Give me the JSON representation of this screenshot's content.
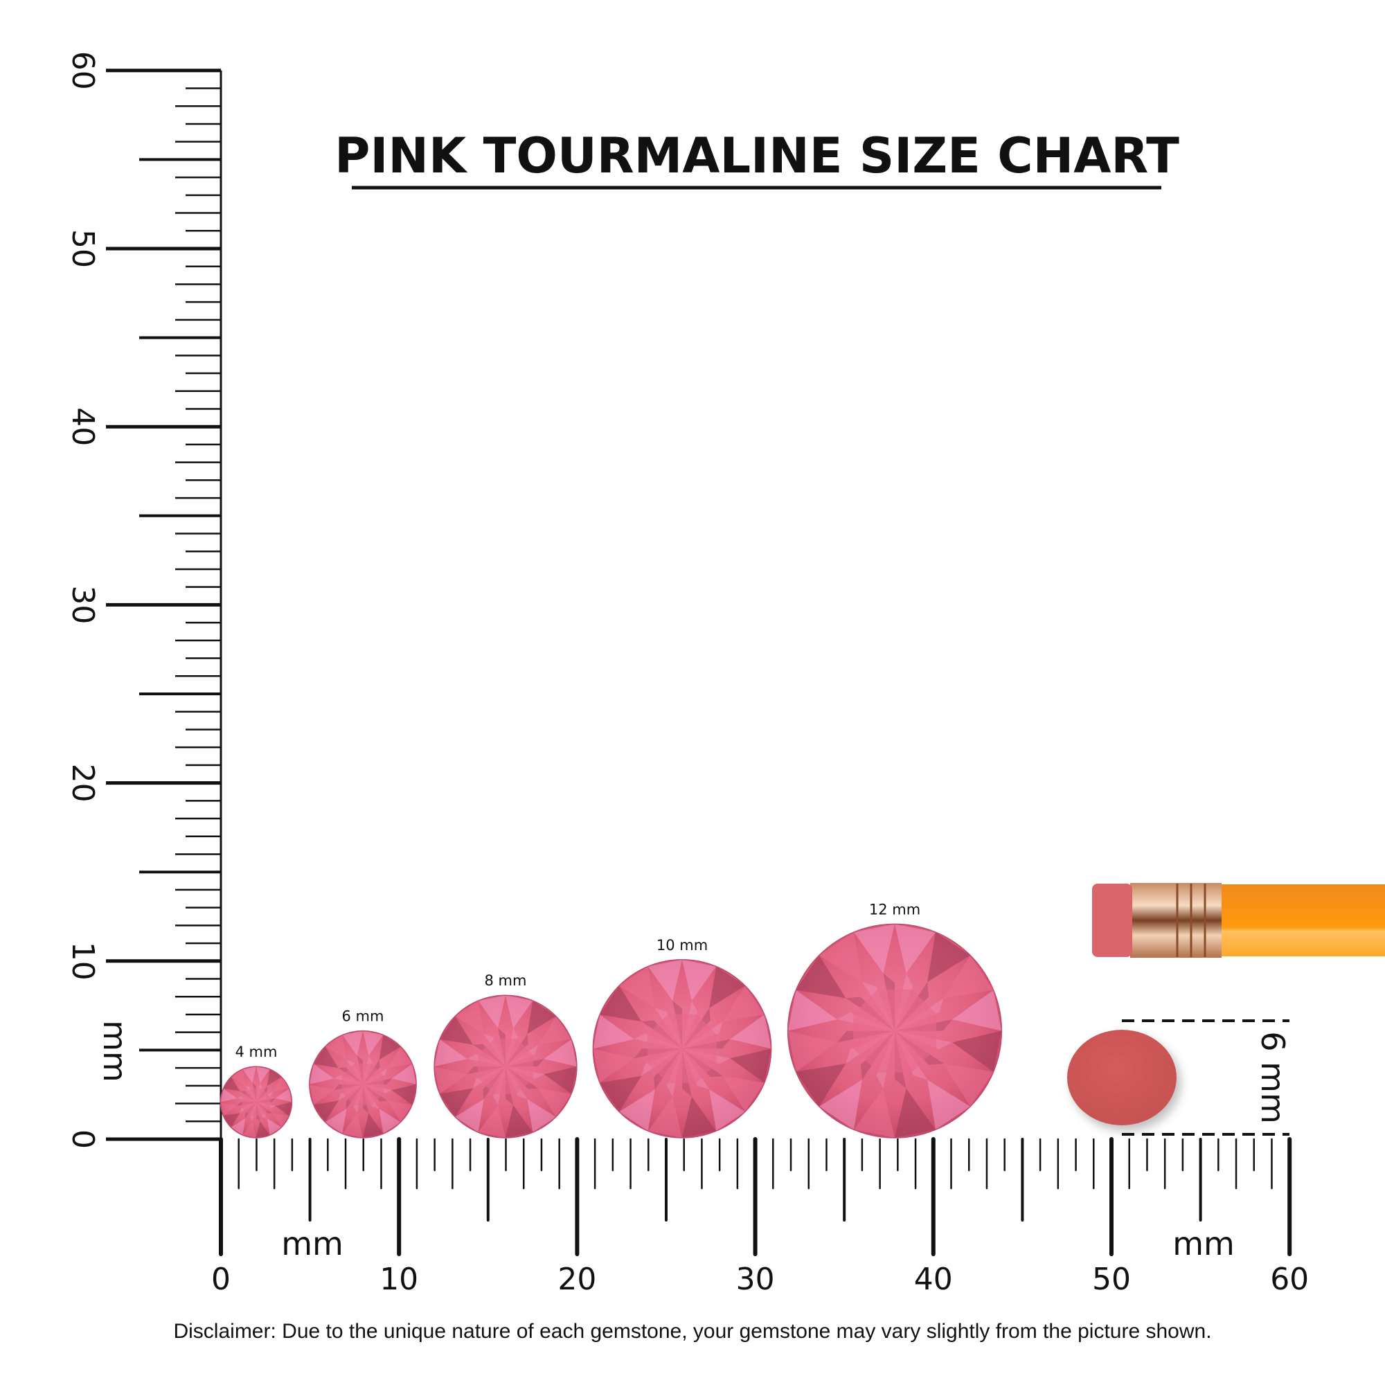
{
  "title": "PINK TOURMALINE SIZE CHART",
  "ruler": {
    "unit_label": "mm",
    "min": 0,
    "max": 60,
    "major_step": 10,
    "tick_labels": [
      "0",
      "10",
      "20",
      "30",
      "40",
      "50",
      "60"
    ]
  },
  "gems": [
    {
      "label": "4 mm",
      "size_mm": 4
    },
    {
      "label": "6 mm",
      "size_mm": 6
    },
    {
      "label": "8 mm",
      "size_mm": 8
    },
    {
      "label": "10 mm",
      "size_mm": 10
    },
    {
      "label": "12 mm",
      "size_mm": 12
    }
  ],
  "reference": {
    "label": "6 mm",
    "size_mm": 6,
    "object": "pencil-eraser"
  },
  "colors": {
    "gem_base": "#e0607f",
    "gem_light": "#f59ac8",
    "gem_dark": "#9c3a55",
    "eraser": "#d05858",
    "pencil_body": "#f7941d",
    "ferrule": "#d9a27c"
  },
  "disclaimer": "Disclaimer: Due to the unique nature of each gemstone, your gemstone may vary slightly from the picture shown."
}
